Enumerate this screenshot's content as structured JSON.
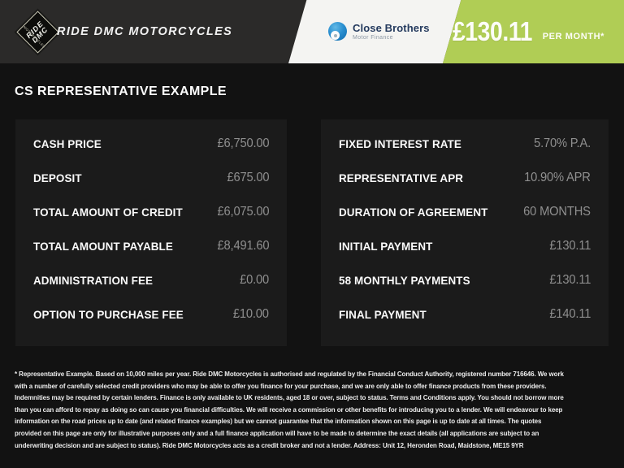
{
  "header": {
    "dealer_name": "RIDE DMC MOTORCYCLES",
    "logo": {
      "line1": "RIDE",
      "line2": "DMC",
      "edge_text": "MOTORCYCLES"
    },
    "finance_partner": {
      "name": "Close Brothers",
      "subtitle": "Motor Finance"
    },
    "price_badge": {
      "amount": "£130.11",
      "period": "PER MONTH*"
    }
  },
  "page_title": "CS REPRESENTATIVE EXAMPLE",
  "finance_table": {
    "left_rows": [
      {
        "label": "CASH PRICE",
        "value": "£6,750.00"
      },
      {
        "label": "DEPOSIT",
        "value": "£675.00"
      },
      {
        "label": "TOTAL AMOUNT OF CREDIT",
        "value": "£6,075.00"
      },
      {
        "label": "TOTAL AMOUNT PAYABLE",
        "value": "£8,491.60"
      },
      {
        "label": "ADMINISTRATION FEE",
        "value": "£0.00"
      },
      {
        "label": "OPTION TO PURCHASE FEE",
        "value": "£10.00"
      }
    ],
    "right_rows": [
      {
        "label": "FIXED INTEREST RATE",
        "value": "5.70% P.A."
      },
      {
        "label": "REPRESENTATIVE APR",
        "value": "10.90% APR"
      },
      {
        "label": "DURATION OF AGREEMENT",
        "value": "60 MONTHS"
      },
      {
        "label": "INITIAL PAYMENT",
        "value": "£130.11"
      },
      {
        "label": "58 MONTHLY PAYMENTS",
        "value": "£130.11"
      },
      {
        "label": "FINAL PAYMENT",
        "value": "£140.11"
      }
    ]
  },
  "disclaimer": "* Representative Example. Based on 10,000 miles per year. Ride DMC Motorcycles is authorised and regulated by the Financial Conduct Authority, registered number 716646. We work with a number of carefully selected credit providers who may be able to offer you finance for your purchase, and we are only able to offer finance products from these providers. Indemnities may be required by certain lenders. Finance is only available to UK residents, aged 18 or over, subject to status. Terms and Conditions apply. You should not borrow more than you can afford to repay as doing so can cause you financial difficulties. We will receive a commission or other benefits for introducing you to a lender. We will endeavour to keep information on the road prices up to date (and related finance examples) but we cannot guarantee that the information shown on this page is up to date at all times. The quotes provided on this page are only for illustrative purposes only and a full finance application will have to be made to determine the exact details (all applications are subject to an underwriting decision and are subject to status). Ride DMC Motorcycles acts as a credit broker and not a lender. Address: Unit 12, Heronden Road, Maidstone, ME15 9YR",
  "colors": {
    "page_bg": "#121212",
    "header_bg": "#2b2a29",
    "panel_bg": "#1b1b1b",
    "band_white": "#f4f4f2",
    "accent_green": "#b0cd55",
    "label_text": "#fafafa",
    "value_text": "#8f8f8f",
    "cb_navy": "#243a5e",
    "cb_gray": "#8b97a4"
  }
}
